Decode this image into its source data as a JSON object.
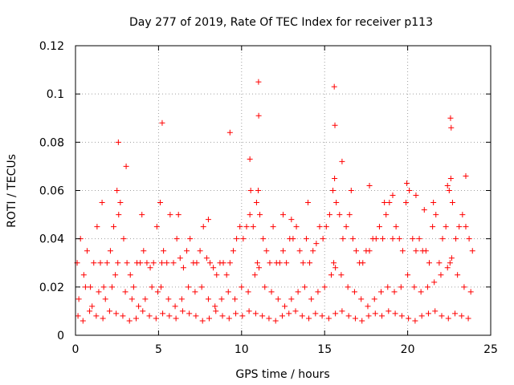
{
  "chart_data": {
    "type": "scatter",
    "title": "Day 277 of 2019, Rate Of TEC Index for receiver p113",
    "xlabel": "GPS time / hours",
    "ylabel": "ROTI / TECUs",
    "xlim": [
      0,
      25
    ],
    "ylim": [
      0,
      0.12
    ],
    "x_ticks": [
      0,
      5,
      10,
      15,
      20,
      25
    ],
    "y_ticks": [
      0,
      0.02,
      0.04,
      0.06,
      0.08,
      0.1,
      0.12
    ],
    "x_tick_labels": [
      "0",
      "5",
      "10",
      "15",
      "20",
      "25"
    ],
    "y_tick_labels": [
      "0",
      "0.02",
      "0.04",
      "0.06",
      "0.08",
      "0.1",
      "0.12"
    ],
    "grid": true,
    "marker": "plus",
    "color": "#ff0000",
    "series": [
      {
        "name": "ROTI",
        "x": [
          0.1,
          0.3,
          0.5,
          0.7,
          0.9,
          1.1,
          1.3,
          1.5,
          1.7,
          1.9,
          2.1,
          2.3,
          2.5,
          2.6,
          2.7,
          2.9,
          3.1,
          3.3,
          3.5,
          3.7,
          3.9,
          4.1,
          4.3,
          4.5,
          4.7,
          4.9,
          5.1,
          5.2,
          5.3,
          5.5,
          5.7,
          5.9,
          6.1,
          6.3,
          6.5,
          6.7,
          6.9,
          7.1,
          7.3,
          7.5,
          7.7,
          7.9,
          8.1,
          8.3,
          8.5,
          8.7,
          8.9,
          9.1,
          9.3,
          9.5,
          9.7,
          9.9,
          10.1,
          10.3,
          10.5,
          10.7,
          10.9,
          11.0,
          11.1,
          11.3,
          11.5,
          11.7,
          11.9,
          12.1,
          12.3,
          12.5,
          12.7,
          12.9,
          13.1,
          13.3,
          13.5,
          13.7,
          13.9,
          14.1,
          14.3,
          14.5,
          14.7,
          14.9,
          15.1,
          15.3,
          15.5,
          15.6,
          15.7,
          15.9,
          16.1,
          16.3,
          16.5,
          16.7,
          16.9,
          17.1,
          17.3,
          17.5,
          17.7,
          17.9,
          18.1,
          18.3,
          18.5,
          18.7,
          18.9,
          19.1,
          19.3,
          19.5,
          19.7,
          19.9,
          20.1,
          20.3,
          20.5,
          20.7,
          20.9,
          21.1,
          21.3,
          21.5,
          21.7,
          21.9,
          22.1,
          22.3,
          22.5,
          22.6,
          22.7,
          22.9,
          23.1,
          23.3,
          23.5,
          23.7,
          23.9,
          0.2,
          0.6,
          1.0,
          1.4,
          1.8,
          2.2,
          2.4,
          2.55,
          3.0,
          3.4,
          3.8,
          4.2,
          4.6,
          4.95,
          5.15,
          5.6,
          6.0,
          6.4,
          6.8,
          7.2,
          7.6,
          8.0,
          8.4,
          8.8,
          9.2,
          9.6,
          10.0,
          10.4,
          10.8,
          10.95,
          11.05,
          11.4,
          11.8,
          12.2,
          12.6,
          13.0,
          13.4,
          13.8,
          14.2,
          14.6,
          15.0,
          15.4,
          15.55,
          15.65,
          16.0,
          16.4,
          16.8,
          17.2,
          17.6,
          18.0,
          18.4,
          18.8,
          19.2,
          19.6,
          20.0,
          20.4,
          20.8,
          21.2,
          21.6,
          22.0,
          22.4,
          22.55,
          22.65,
          23.0,
          23.4,
          23.8,
          0.15,
          0.45,
          0.85,
          1.25,
          1.65,
          2.05,
          2.45,
          2.85,
          3.25,
          3.65,
          4.05,
          4.45,
          4.85,
          5.25,
          5.65,
          6.05,
          6.45,
          6.85,
          7.25,
          7.65,
          8.05,
          8.45,
          8.85,
          9.25,
          9.65,
          10.05,
          10.45,
          10.85,
          11.25,
          11.65,
          12.05,
          12.45,
          12.85,
          13.25,
          13.65,
          14.05,
          14.45,
          14.85,
          15.25,
          15.65,
          16.05,
          16.45,
          16.85,
          17.25,
          17.65,
          18.05,
          18.45,
          18.85,
          19.25,
          19.65,
          20.05,
          20.45,
          20.85,
          21.25,
          21.65,
          22.05,
          22.45,
          22.85,
          23.25,
          23.65,
          9.3,
          10.5,
          10.55,
          11.02,
          11.03,
          15.58,
          15.62,
          22.58,
          22.62,
          5.22,
          2.58,
          3.05,
          16.05,
          16.6,
          19.1,
          19.95,
          21.55,
          22.4,
          23.5,
          14.0,
          17.7,
          13.0,
          12.5,
          18.6,
          20.5,
          21.0,
          6.2,
          8.0,
          4.0,
          1.6
        ],
        "y": [
          0.03,
          0.04,
          0.025,
          0.035,
          0.02,
          0.03,
          0.045,
          0.03,
          0.02,
          0.03,
          0.035,
          0.045,
          0.06,
          0.05,
          0.055,
          0.04,
          0.03,
          0.025,
          0.02,
          0.03,
          0.03,
          0.035,
          0.03,
          0.028,
          0.03,
          0.045,
          0.055,
          0.03,
          0.035,
          0.03,
          0.05,
          0.03,
          0.04,
          0.032,
          0.028,
          0.035,
          0.04,
          0.03,
          0.03,
          0.035,
          0.045,
          0.032,
          0.03,
          0.028,
          0.025,
          0.03,
          0.03,
          0.025,
          0.03,
          0.035,
          0.04,
          0.045,
          0.04,
          0.045,
          0.05,
          0.045,
          0.055,
          0.06,
          0.05,
          0.04,
          0.035,
          0.03,
          0.045,
          0.03,
          0.03,
          0.035,
          0.03,
          0.04,
          0.04,
          0.045,
          0.035,
          0.03,
          0.04,
          0.03,
          0.035,
          0.038,
          0.045,
          0.04,
          0.045,
          0.05,
          0.06,
          0.065,
          0.055,
          0.05,
          0.04,
          0.045,
          0.05,
          0.04,
          0.035,
          0.03,
          0.03,
          0.035,
          0.035,
          0.04,
          0.04,
          0.045,
          0.04,
          0.05,
          0.055,
          0.04,
          0.045,
          0.04,
          0.035,
          0.055,
          0.06,
          0.04,
          0.035,
          0.04,
          0.035,
          0.035,
          0.03,
          0.045,
          0.05,
          0.03,
          0.04,
          0.045,
          0.06,
          0.065,
          0.055,
          0.04,
          0.045,
          0.05,
          0.045,
          0.04,
          0.035,
          0.015,
          0.02,
          0.012,
          0.018,
          0.015,
          0.02,
          0.025,
          0.03,
          0.018,
          0.015,
          0.012,
          0.015,
          0.02,
          0.018,
          0.02,
          0.015,
          0.012,
          0.015,
          0.02,
          0.018,
          0.02,
          0.015,
          0.012,
          0.015,
          0.018,
          0.015,
          0.02,
          0.018,
          0.025,
          0.03,
          0.028,
          0.02,
          0.018,
          0.015,
          0.012,
          0.015,
          0.018,
          0.02,
          0.015,
          0.018,
          0.02,
          0.025,
          0.03,
          0.028,
          0.025,
          0.02,
          0.018,
          0.015,
          0.012,
          0.015,
          0.018,
          0.02,
          0.018,
          0.02,
          0.025,
          0.02,
          0.018,
          0.02,
          0.022,
          0.025,
          0.028,
          0.03,
          0.032,
          0.025,
          0.02,
          0.018,
          0.008,
          0.006,
          0.01,
          0.008,
          0.007,
          0.01,
          0.009,
          0.008,
          0.006,
          0.007,
          0.01,
          0.008,
          0.007,
          0.009,
          0.008,
          0.007,
          0.01,
          0.009,
          0.008,
          0.006,
          0.007,
          0.01,
          0.008,
          0.007,
          0.009,
          0.008,
          0.01,
          0.009,
          0.008,
          0.007,
          0.006,
          0.008,
          0.009,
          0.01,
          0.008,
          0.007,
          0.009,
          0.008,
          0.007,
          0.009,
          0.01,
          0.008,
          0.007,
          0.006,
          0.008,
          0.009,
          0.008,
          0.01,
          0.009,
          0.008,
          0.007,
          0.006,
          0.008,
          0.009,
          0.01,
          0.008,
          0.007,
          0.009,
          0.008,
          0.007,
          0.084,
          0.073,
          0.06,
          0.105,
          0.091,
          0.103,
          0.087,
          0.09,
          0.086,
          0.088,
          0.08,
          0.07,
          0.072,
          0.06,
          0.058,
          0.063,
          0.055,
          0.062,
          0.066,
          0.055,
          0.062,
          0.048,
          0.05,
          0.055,
          0.058,
          0.052,
          0.05,
          0.048,
          0.05,
          0.055
        ]
      }
    ]
  }
}
